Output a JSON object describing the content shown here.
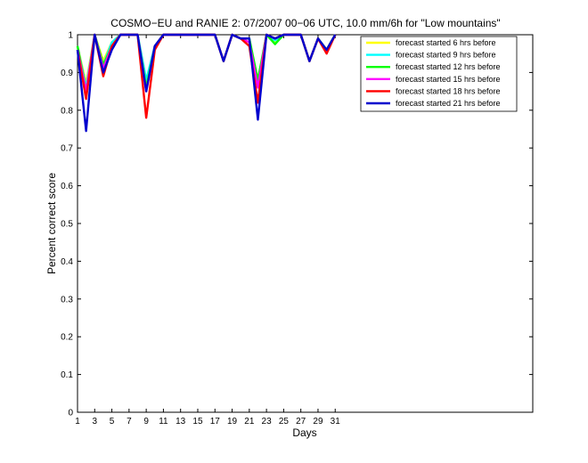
{
  "chart_data": {
    "type": "line",
    "title": "COSMO−EU and RANIE 2: 07/2007 00−06 UTC, 10.0 mm/6h for \"Low mountains\"",
    "xlabel": "Days",
    "ylabel": "Percent correct score",
    "xlim": [
      1,
      54
    ],
    "ylim": [
      0,
      1
    ],
    "x_ticks": [
      1,
      3,
      5,
      7,
      9,
      11,
      13,
      15,
      17,
      19,
      21,
      23,
      25,
      27,
      29,
      31
    ],
    "y_ticks": [
      0,
      0.1,
      0.2,
      0.3,
      0.4,
      0.5,
      0.6,
      0.7,
      0.8,
      0.9,
      1
    ],
    "y_tick_labels": [
      "0",
      "0.1",
      "0.2",
      "0.3",
      "0.4",
      "0.5",
      "0.6",
      "0.7",
      "0.8",
      "0.9",
      "1"
    ],
    "legend_position": "top-right",
    "x": [
      1,
      2,
      3,
      4,
      5,
      6,
      7,
      8,
      9,
      10,
      11,
      12,
      13,
      14,
      15,
      16,
      17,
      18,
      19,
      20,
      21,
      22,
      23,
      24,
      25,
      26,
      27,
      28,
      29,
      30,
      31
    ],
    "series": [
      {
        "name": "forecast started 6 hrs before",
        "color": "#ffff00",
        "values": [
          0.97,
          0.87,
          1.0,
          0.93,
          0.98,
          1.0,
          1.0,
          1.0,
          0.86,
          0.97,
          1.0,
          1.0,
          1.0,
          1.0,
          1.0,
          1.0,
          1.0,
          0.93,
          1.0,
          0.99,
          0.98,
          0.86,
          1.0,
          0.98,
          1.0,
          1.0,
          1.0,
          0.93,
          0.99,
          0.96,
          1.0
        ]
      },
      {
        "name": "forecast started 9 hrs before",
        "color": "#00ffff",
        "values": [
          0.97,
          0.86,
          1.0,
          0.92,
          0.98,
          1.0,
          1.0,
          1.0,
          0.88,
          0.97,
          1.0,
          1.0,
          1.0,
          1.0,
          1.0,
          1.0,
          1.0,
          0.93,
          1.0,
          0.99,
          0.99,
          0.87,
          1.0,
          0.985,
          1.0,
          1.0,
          1.0,
          0.93,
          0.99,
          0.96,
          1.0
        ]
      },
      {
        "name": "forecast started 12 hrs before",
        "color": "#00ff00",
        "values": [
          0.97,
          0.85,
          1.0,
          0.92,
          0.97,
          1.0,
          1.0,
          1.0,
          0.86,
          0.97,
          1.0,
          1.0,
          1.0,
          1.0,
          1.0,
          1.0,
          1.0,
          0.93,
          1.0,
          0.99,
          0.99,
          0.88,
          1.0,
          0.975,
          1.0,
          1.0,
          1.0,
          0.93,
          0.99,
          0.96,
          1.0
        ]
      },
      {
        "name": "forecast started 15 hrs before",
        "color": "#ff00ff",
        "values": [
          0.96,
          0.85,
          1.0,
          0.91,
          0.97,
          1.0,
          1.0,
          1.0,
          0.85,
          0.97,
          1.0,
          1.0,
          1.0,
          1.0,
          1.0,
          1.0,
          1.0,
          0.93,
          1.0,
          0.99,
          0.98,
          0.86,
          1.0,
          0.99,
          1.0,
          1.0,
          1.0,
          0.93,
          0.99,
          0.955,
          1.0
        ]
      },
      {
        "name": "forecast started 18 hrs before",
        "color": "#ff0000",
        "values": [
          0.96,
          0.83,
          1.0,
          0.89,
          0.97,
          1.0,
          1.0,
          1.0,
          0.78,
          0.96,
          1.0,
          1.0,
          1.0,
          1.0,
          1.0,
          1.0,
          1.0,
          0.93,
          1.0,
          0.99,
          0.97,
          0.82,
          1.0,
          0.99,
          1.0,
          1.0,
          1.0,
          0.93,
          0.99,
          0.95,
          1.0
        ]
      },
      {
        "name": "forecast started 21 hrs before",
        "color": "#0000cd",
        "values": [
          0.96,
          0.745,
          1.0,
          0.9,
          0.96,
          1.0,
          1.0,
          1.0,
          0.85,
          0.97,
          1.0,
          1.0,
          1.0,
          1.0,
          1.0,
          1.0,
          1.0,
          0.93,
          1.0,
          0.99,
          0.99,
          0.775,
          1.0,
          0.99,
          1.0,
          1.0,
          1.0,
          0.93,
          0.99,
          0.96,
          1.0
        ]
      }
    ]
  }
}
